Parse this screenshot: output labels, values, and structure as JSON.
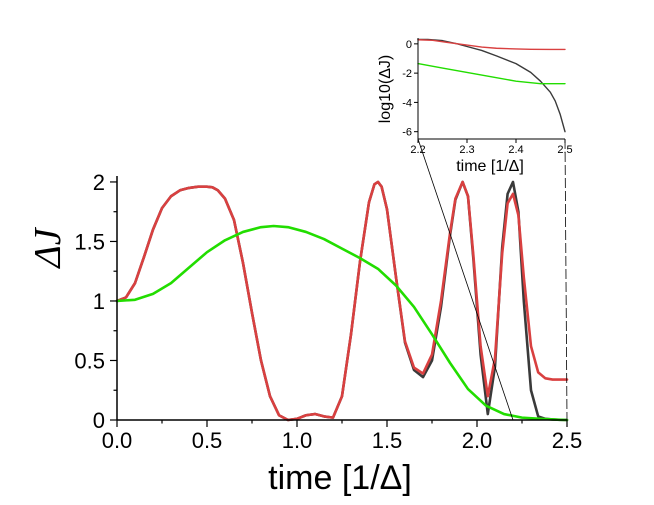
{
  "chart_data": [
    {
      "name": "main",
      "type": "line",
      "title": "",
      "xlabel": "time [1/Δ]",
      "ylabel": "ΔJ",
      "xlim": [
        0,
        2.5
      ],
      "ylim": [
        0,
        2.05
      ],
      "xticks": [
        0.0,
        0.5,
        1.0,
        1.5,
        2.0,
        2.5
      ],
      "xtick_labels": [
        "0.0",
        "0.5",
        "1.0",
        "1.5",
        "2.0",
        "2.5"
      ],
      "yticks": [
        0,
        0.5,
        1,
        1.5,
        2
      ],
      "ytick_labels": [
        "0",
        "0.5",
        "1",
        "1.5",
        "2"
      ],
      "grid": false,
      "legend": "none",
      "series": [
        {
          "name": "black",
          "color": "#3a3a3a",
          "x": [
            0,
            0.05,
            0.1,
            0.15,
            0.2,
            0.25,
            0.3,
            0.35,
            0.4,
            0.45,
            0.5,
            0.53,
            0.56,
            0.6,
            0.65,
            0.7,
            0.75,
            0.8,
            0.85,
            0.9,
            0.95,
            1.0,
            1.05,
            1.1,
            1.15,
            1.2,
            1.25,
            1.3,
            1.35,
            1.4,
            1.43,
            1.45,
            1.47,
            1.5,
            1.55,
            1.6,
            1.65,
            1.7,
            1.75,
            1.8,
            1.85,
            1.88,
            1.92,
            1.95,
            1.98,
            2.02,
            2.06,
            2.1,
            2.14,
            2.17,
            2.2,
            2.23,
            2.26,
            2.3,
            2.34,
            2.38,
            2.42,
            2.46,
            2.5
          ],
          "y": [
            1.0,
            1.03,
            1.15,
            1.37,
            1.6,
            1.78,
            1.88,
            1.93,
            1.95,
            1.96,
            1.96,
            1.955,
            1.93,
            1.86,
            1.68,
            1.32,
            0.9,
            0.5,
            0.2,
            0.04,
            0.0,
            0.01,
            0.04,
            0.05,
            0.03,
            0.02,
            0.2,
            0.72,
            1.33,
            1.83,
            1.98,
            2.0,
            1.96,
            1.77,
            1.2,
            0.65,
            0.42,
            0.36,
            0.5,
            0.95,
            1.55,
            1.85,
            2.0,
            1.88,
            1.35,
            0.55,
            0.05,
            0.45,
            1.45,
            1.9,
            2.0,
            1.75,
            1.0,
            0.25,
            0.03,
            0.01,
            0.005,
            0.001,
            0.0
          ]
        },
        {
          "name": "red",
          "color": "#d94040",
          "x": [
            0,
            0.05,
            0.1,
            0.15,
            0.2,
            0.25,
            0.3,
            0.35,
            0.4,
            0.45,
            0.5,
            0.53,
            0.56,
            0.6,
            0.65,
            0.7,
            0.75,
            0.8,
            0.85,
            0.9,
            0.95,
            1.0,
            1.05,
            1.1,
            1.15,
            1.2,
            1.25,
            1.3,
            1.35,
            1.4,
            1.43,
            1.45,
            1.47,
            1.5,
            1.55,
            1.6,
            1.65,
            1.7,
            1.75,
            1.8,
            1.85,
            1.88,
            1.92,
            1.95,
            1.98,
            2.02,
            2.06,
            2.1,
            2.14,
            2.17,
            2.2,
            2.23,
            2.26,
            2.3,
            2.34,
            2.38,
            2.42,
            2.46,
            2.5
          ],
          "y": [
            1.0,
            1.03,
            1.15,
            1.37,
            1.6,
            1.78,
            1.88,
            1.93,
            1.95,
            1.96,
            1.96,
            1.955,
            1.93,
            1.86,
            1.68,
            1.32,
            0.9,
            0.5,
            0.2,
            0.04,
            0.0,
            0.01,
            0.04,
            0.05,
            0.03,
            0.02,
            0.2,
            0.72,
            1.33,
            1.83,
            1.98,
            2.0,
            1.96,
            1.77,
            1.2,
            0.66,
            0.44,
            0.39,
            0.55,
            1.0,
            1.57,
            1.86,
            2.0,
            1.88,
            1.38,
            0.62,
            0.2,
            0.52,
            1.4,
            1.82,
            1.9,
            1.72,
            1.2,
            0.62,
            0.4,
            0.35,
            0.34,
            0.34,
            0.34
          ]
        },
        {
          "name": "green",
          "color": "#22dd00",
          "x": [
            0,
            0.1,
            0.2,
            0.3,
            0.4,
            0.5,
            0.6,
            0.7,
            0.8,
            0.87,
            0.95,
            1.05,
            1.15,
            1.25,
            1.35,
            1.45,
            1.55,
            1.65,
            1.75,
            1.85,
            1.95,
            2.05,
            2.15,
            2.25,
            2.35,
            2.45,
            2.5
          ],
          "y": [
            1.0,
            1.01,
            1.06,
            1.15,
            1.28,
            1.41,
            1.51,
            1.58,
            1.62,
            1.63,
            1.62,
            1.58,
            1.52,
            1.44,
            1.36,
            1.27,
            1.13,
            0.95,
            0.72,
            0.48,
            0.26,
            0.12,
            0.05,
            0.02,
            0.01,
            0.003,
            0.0
          ]
        }
      ]
    },
    {
      "name": "inset",
      "type": "line",
      "title": "",
      "xlabel": "time [1/Δ]",
      "ylabel": "log10(ΔJ)",
      "xlim": [
        2.2,
        2.5
      ],
      "ylim": [
        -6.5,
        0.4
      ],
      "xticks": [
        2.2,
        2.3,
        2.4,
        2.5
      ],
      "xtick_labels": [
        "2.2",
        "2.3",
        "2.4",
        "2.5"
      ],
      "yticks": [
        0,
        -2,
        -4,
        -6
      ],
      "ytick_labels": [
        "0",
        "-2",
        "-4",
        "-6"
      ],
      "grid": false,
      "legend": "none",
      "series": [
        {
          "name": "black",
          "color": "#3a3a3a",
          "x": [
            2.2,
            2.22,
            2.25,
            2.28,
            2.3,
            2.33,
            2.36,
            2.4,
            2.43,
            2.45,
            2.47,
            2.48,
            2.49,
            2.5
          ],
          "y": [
            0.3,
            0.3,
            0.22,
            0.0,
            -0.18,
            -0.45,
            -0.82,
            -1.35,
            -1.95,
            -2.55,
            -3.3,
            -3.9,
            -4.8,
            -6.0
          ]
        },
        {
          "name": "red",
          "color": "#d94040",
          "x": [
            2.2,
            2.23,
            2.26,
            2.3,
            2.33,
            2.36,
            2.4,
            2.43,
            2.47,
            2.5
          ],
          "y": [
            0.28,
            0.24,
            0.1,
            -0.08,
            -0.22,
            -0.3,
            -0.35,
            -0.37,
            -0.38,
            -0.38
          ]
        },
        {
          "name": "green",
          "color": "#22dd00",
          "x": [
            2.2,
            2.25,
            2.3,
            2.35,
            2.4,
            2.45,
            2.5
          ],
          "y": [
            -1.35,
            -1.65,
            -1.95,
            -2.25,
            -2.55,
            -2.72,
            -2.72
          ]
        }
      ]
    }
  ]
}
